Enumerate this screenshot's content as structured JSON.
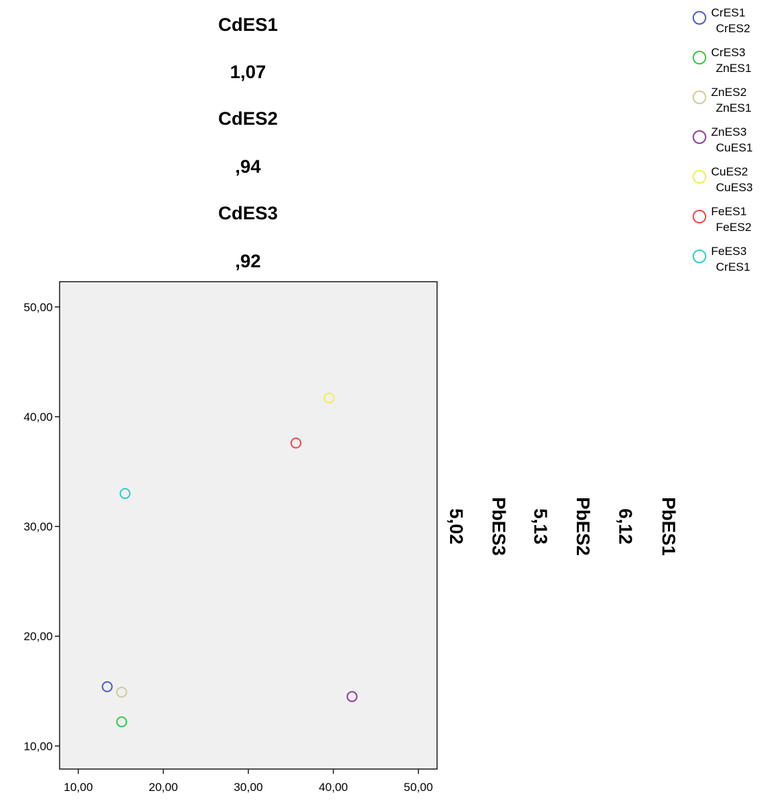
{
  "chart_data": {
    "type": "scatter",
    "header_labels": [
      "CdES1",
      "1,07",
      "CdES2",
      ",94",
      "CdES3",
      ",92"
    ],
    "side_labels": [
      "5,02",
      "PbES3",
      "5,13",
      "PbES2",
      "6,12",
      "PbES1"
    ],
    "x_ticks": [
      "10,00",
      "20,00",
      "30,00",
      "40,00",
      "50,00"
    ],
    "y_ticks": [
      "10,00",
      "20,00",
      "30,00",
      "40,00",
      "50,00"
    ],
    "xlim": [
      7.8,
      52.2
    ],
    "ylim": [
      7.9,
      52.3
    ],
    "grid": false,
    "legend_position": "top-right",
    "series": [
      {
        "line1": "CrES1",
        "line2": "CrES2",
        "color": "#4a5cc4",
        "points": [
          [
            13.4,
            15.4
          ]
        ]
      },
      {
        "line1": "CrES3",
        "line2": "ZnES1",
        "color": "#3cc24a",
        "points": [
          [
            15.1,
            12.2
          ]
        ]
      },
      {
        "line1": "ZnES2",
        "line2": "ZnES1",
        "color": "#cfcc9a",
        "points": [
          [
            15.1,
            14.9
          ]
        ]
      },
      {
        "line1": "ZnES3",
        "line2": "CuES1",
        "color": "#8e3f9a",
        "points": [
          [
            42.2,
            14.5
          ]
        ]
      },
      {
        "line1": "CuES2",
        "line2": "CuES3",
        "color": "#f0ee5a",
        "points": [
          [
            39.5,
            41.7
          ]
        ]
      },
      {
        "line1": "FeES1",
        "line2": "FeES2",
        "color": "#e84a4a",
        "points": [
          [
            35.6,
            37.6
          ]
        ]
      },
      {
        "line1": "FeES3",
        "line2": "CrES1",
        "color": "#3cc8c8",
        "points": [
          [
            15.5,
            33.0
          ]
        ]
      }
    ]
  }
}
